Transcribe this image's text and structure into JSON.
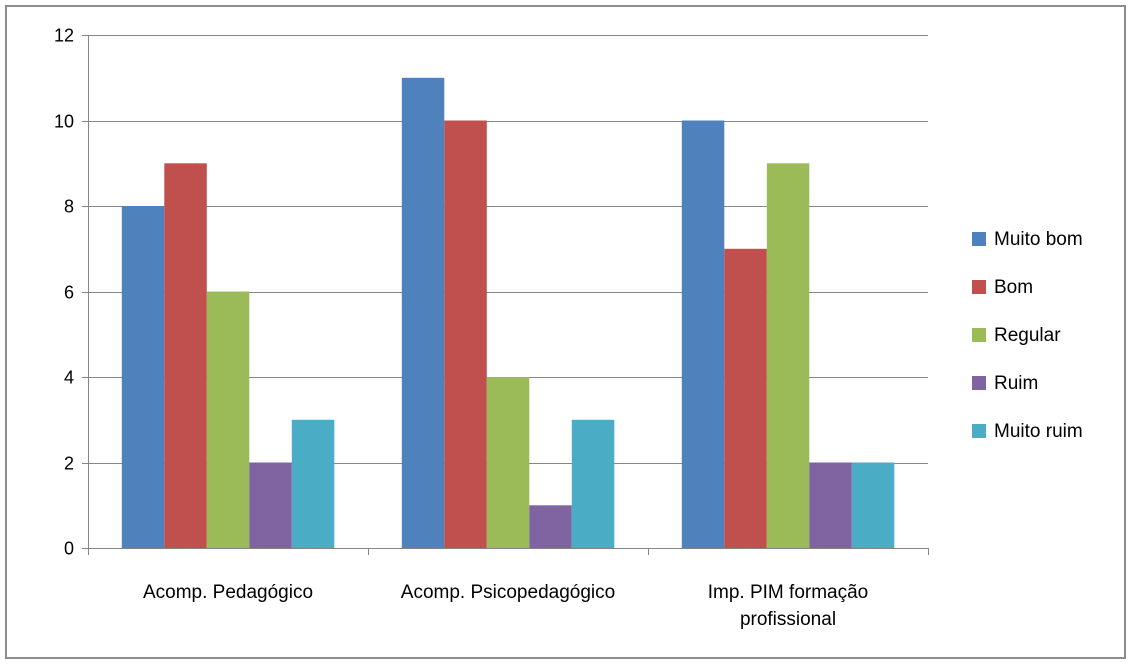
{
  "chart_data": {
    "type": "bar",
    "categories": [
      [
        "Acomp. Pedagógico"
      ],
      [
        "Acomp. Psicopedagógico"
      ],
      [
        "Imp. PIM formação",
        "profissional"
      ]
    ],
    "series": [
      {
        "name": "Muito bom",
        "color": "#4f81bd",
        "values": [
          8,
          11,
          10
        ]
      },
      {
        "name": "Bom",
        "color": "#c0504d",
        "values": [
          9,
          10,
          7
        ]
      },
      {
        "name": "Regular",
        "color": "#9bbb59",
        "values": [
          6,
          4,
          9
        ]
      },
      {
        "name": "Ruim",
        "color": "#8064a2",
        "values": [
          2,
          1,
          2
        ]
      },
      {
        "name": "Muito ruim",
        "color": "#4bacc6",
        "values": [
          3,
          3,
          2
        ]
      }
    ],
    "yticks": [
      "0",
      "2",
      "4",
      "6",
      "8",
      "10",
      "12"
    ],
    "ylim": [
      0,
      12
    ],
    "grid": true,
    "legend": "right",
    "title": "",
    "xlabel": "",
    "ylabel": ""
  }
}
